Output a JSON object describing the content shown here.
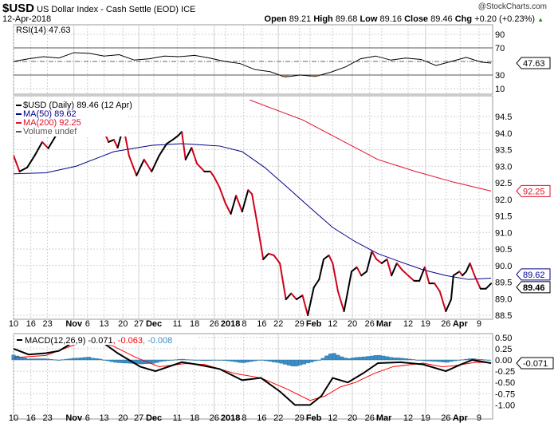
{
  "header": {
    "symbol": "$USD",
    "name": "US Dollar Index - Cash Settle (EOD)",
    "exchange": "ICE",
    "date": "12-Apr-2018",
    "brand": "@StockCharts.com",
    "open_label": "Open",
    "open": "89.21",
    "high_label": "High",
    "high": "89.68",
    "low_label": "Low",
    "low": "89.16",
    "close_label": "Close",
    "close": "89.46",
    "chg_label": "Chg",
    "chg": "+0.20 (+0.23%)",
    "up_arrow": "▲"
  },
  "colors": {
    "price_up": "#000000",
    "price_down": "#d0021b",
    "ma50": "#00008b",
    "ma200": "#e0102a",
    "hist": "#3a8fc4",
    "grid": "#d0d0d0"
  },
  "chart_data": [
    {
      "type": "line",
      "title": "RSI(14) 47.63",
      "legend": "RSI(14) 47.63",
      "ylim": [
        0,
        100
      ],
      "yticks": [
        90,
        70,
        30,
        10
      ],
      "ref_lines": [
        70,
        30
      ],
      "last_value": "47.63",
      "day": [
        0,
        4,
        8,
        12,
        16,
        20,
        24,
        28,
        32,
        36,
        40,
        44,
        48,
        52,
        56,
        60,
        64,
        68,
        72,
        76,
        80,
        84,
        88,
        92,
        96,
        100,
        104,
        108,
        112,
        116,
        120,
        124,
        126.6
      ],
      "values": [
        50,
        54,
        57,
        55,
        63,
        62,
        58,
        60,
        52,
        54,
        58,
        57,
        59,
        55,
        50,
        47,
        38,
        35,
        27,
        30,
        28,
        34,
        42,
        54,
        58,
        52,
        55,
        53,
        44,
        50,
        56,
        49,
        47.63
      ]
    },
    {
      "type": "line",
      "title": "$USD (Daily) 89.46 (12 Apr)",
      "legend": [
        "$USD (Daily) 89.46 (12 Apr)",
        "MA(50) 89.62",
        "MA(200) 92.25",
        "Volume undef"
      ],
      "ylim": [
        88.3,
        95.0
      ],
      "yticks": [
        "94.5",
        "94.0",
        "93.5",
        "93.0",
        "92.5",
        "92.0",
        "91.5",
        "91.0",
        "90.5",
        "90.0",
        "89.5",
        "89.0",
        "88.5"
      ],
      "xtick_labels": [
        "10",
        "16",
        "23",
        "Nov",
        "6",
        "13",
        "20",
        "27",
        "Dec",
        "11",
        "18",
        "26",
        "2018",
        "8",
        "16",
        "22",
        "29",
        "Feb",
        "12",
        "20",
        "26",
        "Mar",
        "12",
        "19",
        "26",
        "Apr",
        "9"
      ],
      "xtick_days": [
        0,
        4.6,
        9,
        16,
        19.6,
        24,
        29,
        33.2,
        37.2,
        43.4,
        48,
        53.2,
        56.2,
        61,
        65.8,
        70.2,
        75.8,
        78.6,
        84.6,
        89.8,
        94.4,
        97.6,
        104.6,
        109.2,
        114.6,
        118.4,
        123.4
      ],
      "price": {
        "day": [
          0,
          1.6,
          3.6,
          5.6,
          7.6,
          9.2,
          11.2,
          16.6,
          18.6,
          20.2,
          21.6,
          22.6,
          24,
          25.2,
          26.6,
          27.6,
          28.6,
          29.6,
          30.6,
          32.6,
          34.6,
          36.6,
          38.6,
          40.6,
          42.2,
          43.6,
          44.6,
          45.6,
          47.2,
          48.6,
          50.6,
          52.2,
          53.2,
          54.6,
          56.2,
          57.6,
          59,
          60.6,
          62.2,
          63.2,
          64.6,
          66.2,
          67.6,
          69,
          70.6,
          72.2,
          73.6,
          75,
          76.6,
          78,
          79.6,
          81,
          82.2,
          83.6,
          84.6,
          86,
          87.6,
          89.6,
          91,
          92.2,
          93.6,
          95,
          96.2,
          97.6,
          99,
          100.2,
          101.6,
          103,
          104.6,
          106.2,
          107.6,
          109,
          110.2,
          111.6,
          113,
          114.6,
          116,
          116.6,
          118.2,
          119,
          120,
          121,
          122.2,
          123.8,
          125.2,
          126.6
        ],
        "values": [
          93.32,
          92.84,
          92.96,
          93.32,
          93.73,
          93.54,
          93.92,
          94.7,
          94.64,
          94.74,
          94.72,
          94.4,
          94.04,
          93.73,
          93.8,
          93.56,
          93.97,
          93.92,
          93.32,
          92.72,
          93.2,
          92.84,
          93.32,
          93.68,
          93.8,
          93.92,
          94.04,
          93.2,
          93.56,
          93.08,
          92.84,
          92.84,
          92.67,
          92.36,
          91.87,
          91.56,
          92.11,
          91.63,
          92.28,
          92.16,
          91.27,
          90.19,
          90.36,
          90.31,
          90.07,
          88.98,
          89.16,
          88.98,
          89.1,
          88.5,
          89.34,
          89.58,
          90.19,
          90.31,
          90.07,
          89.22,
          88.62,
          89.82,
          89.95,
          89.7,
          89.82,
          90.43,
          90.19,
          90.07,
          90.19,
          89.7,
          90.07,
          89.87,
          89.7,
          89.54,
          89.54,
          89.95,
          89.46,
          89.46,
          89.22,
          88.62,
          88.98,
          89.7,
          89.82,
          89.7,
          89.82,
          90.07,
          89.7,
          89.3,
          89.3,
          89.46
        ],
        "last_label": "89.46"
      },
      "ma50": {
        "day": [
          0,
          8.6,
          16.6,
          26.6,
          36.6,
          44.6,
          54.6,
          60.6,
          66.6,
          72.6,
          78.6,
          84.6,
          90.6,
          96.6,
          102.6,
          108.6,
          114.6,
          120.6,
          126.6
        ],
        "values": [
          92.77,
          92.8,
          93.0,
          93.44,
          93.63,
          93.68,
          93.61,
          93.44,
          92.96,
          92.36,
          91.75,
          91.15,
          90.72,
          90.36,
          90.11,
          89.87,
          89.7,
          89.58,
          89.62
        ],
        "last_label": "89.62"
      },
      "ma200": {
        "day": [
          62.6,
          76.6,
          86.6,
          96.6,
          106.6,
          116.6,
          126.6
        ],
        "values": [
          95.0,
          94.4,
          93.8,
          93.2,
          92.84,
          92.52,
          92.25
        ],
        "last_label": "92.25"
      }
    },
    {
      "type": "line",
      "title": "MACD(12,26,9)",
      "legend": {
        "name": "MACD(12,26,9)",
        "macd": "-0.071",
        "signal": "-0.063",
        "hist": "-0.008"
      },
      "ylim": [
        -1.07,
        0.55
      ],
      "yticks": [
        "0.50",
        "0.25",
        "0.00",
        "-0.25",
        "-0.50",
        "-0.75",
        "-1.00"
      ],
      "last_label": "-0.071",
      "macd": {
        "day": [
          0,
          4,
          8.6,
          12,
          16,
          20,
          22.6,
          27.6,
          33.6,
          37.6,
          44.6,
          48.6,
          54.6,
          60.6,
          65.6,
          70.6,
          74.6,
          78.6,
          81.6,
          84.6,
          88.6,
          92.6,
          96.6,
          102.6,
          108.6,
          114.6,
          118.6,
          121.6,
          126.6
        ],
        "values": [
          0.25,
          0.12,
          0.15,
          0.2,
          0.4,
          0.55,
          0.45,
          0.15,
          -0.15,
          -0.25,
          -0.05,
          -0.1,
          -0.2,
          -0.45,
          -0.4,
          -0.7,
          -1.0,
          -1.0,
          -0.8,
          -0.4,
          -0.5,
          -0.3,
          -0.07,
          -0.05,
          -0.1,
          -0.25,
          -0.1,
          0.0,
          -0.071
        ]
      },
      "signal": {
        "day": [
          0,
          8.6,
          16.6,
          20.6,
          26.6,
          32.6,
          38.6,
          45.6,
          50.6,
          58.6,
          65.6,
          72.6,
          78.6,
          82.6,
          86.6,
          90.6,
          95.6,
          100.6,
          108.6,
          113.6,
          116.6,
          122.6,
          126.6
        ],
        "values": [
          0.05,
          0.1,
          0.35,
          0.45,
          0.3,
          0.05,
          -0.15,
          -0.08,
          -0.1,
          -0.3,
          -0.4,
          -0.65,
          -0.9,
          -0.8,
          -0.6,
          -0.5,
          -0.3,
          -0.15,
          -0.07,
          -0.15,
          -0.13,
          -0.05,
          -0.063
        ]
      }
    }
  ]
}
